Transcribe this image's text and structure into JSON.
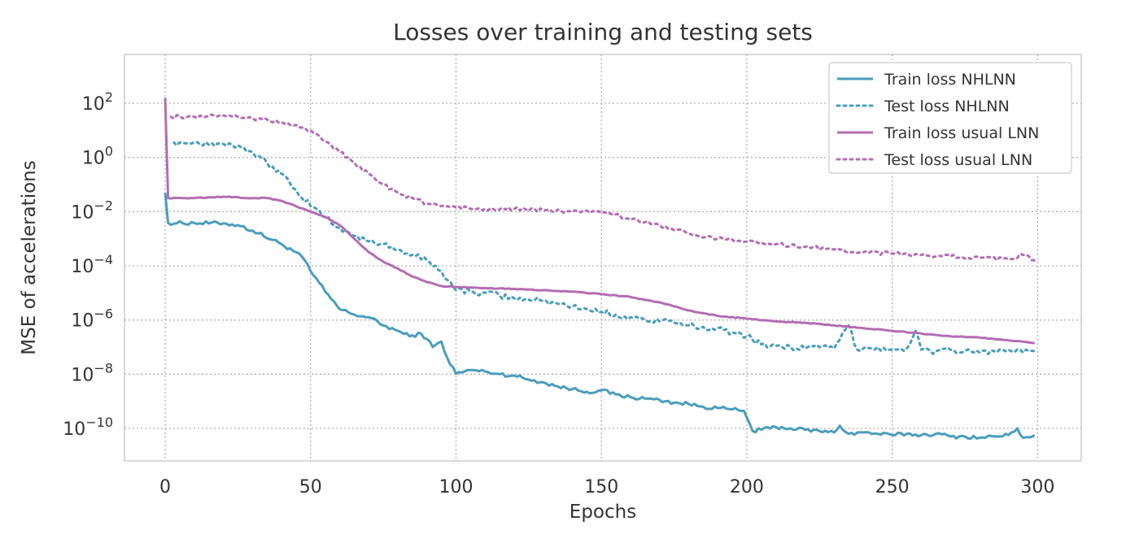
{
  "chart_data": {
    "type": "line",
    "title": "Losses over training and testing sets",
    "xlabel": "Epochs",
    "ylabel": "MSE of accelerations",
    "yscale": "log",
    "grid": true,
    "legend_position": "top-right",
    "xlim": [
      -14,
      315
    ],
    "ylim_exp": [
      -11.2,
      3.8
    ],
    "xticks": [
      0,
      50,
      100,
      150,
      200,
      250,
      300
    ],
    "yticks": [
      {
        "exp": 2,
        "base": "10",
        "power": "2"
      },
      {
        "exp": 0,
        "base": "10",
        "power": "0"
      },
      {
        "exp": -2,
        "base": "10",
        "power": "−2"
      },
      {
        "exp": -4,
        "base": "10",
        "power": "−4"
      },
      {
        "exp": -6,
        "base": "10",
        "power": "−6"
      },
      {
        "exp": -8,
        "base": "10",
        "power": "−8"
      },
      {
        "exp": -10,
        "base": "10",
        "power": "−10"
      }
    ],
    "series": [
      {
        "name": "Train loss NHLNN",
        "color": "#4a9dbd",
        "style": "solid",
        "points_log10": [
          [
            0,
            -1.3
          ],
          [
            1,
            -2.42
          ],
          [
            10,
            -2.42
          ],
          [
            20,
            -2.43
          ],
          [
            25,
            -2.5
          ],
          [
            30,
            -2.7
          ],
          [
            40,
            -3.2
          ],
          [
            45,
            -3.5
          ],
          [
            48,
            -3.8
          ],
          [
            50,
            -4.2
          ],
          [
            55,
            -4.95
          ],
          [
            60,
            -5.6
          ],
          [
            65,
            -5.8
          ],
          [
            70,
            -5.9
          ],
          [
            75,
            -6.2
          ],
          [
            80,
            -6.4
          ],
          [
            84,
            -6.6
          ],
          [
            88,
            -6.5
          ],
          [
            90,
            -6.7
          ],
          [
            92,
            -7.0
          ],
          [
            95,
            -6.8
          ],
          [
            97,
            -7.4
          ],
          [
            100,
            -7.98
          ],
          [
            105,
            -7.85
          ],
          [
            110,
            -7.9
          ],
          [
            115,
            -8.0
          ],
          [
            120,
            -8.05
          ],
          [
            125,
            -8.2
          ],
          [
            130,
            -8.3
          ],
          [
            135,
            -8.45
          ],
          [
            140,
            -8.55
          ],
          [
            145,
            -8.65
          ],
          [
            150,
            -8.6
          ],
          [
            155,
            -8.75
          ],
          [
            160,
            -8.85
          ],
          [
            165,
            -8.9
          ],
          [
            170,
            -8.95
          ],
          [
            175,
            -9.05
          ],
          [
            180,
            -9.1
          ],
          [
            185,
            -9.2
          ],
          [
            190,
            -9.25
          ],
          [
            195,
            -9.3
          ],
          [
            199,
            -9.35
          ],
          [
            200,
            -9.6
          ],
          [
            202,
            -10.1
          ],
          [
            205,
            -10.05
          ],
          [
            210,
            -9.95
          ],
          [
            215,
            -10.0
          ],
          [
            220,
            -10.05
          ],
          [
            225,
            -10.1
          ],
          [
            230,
            -10.15
          ],
          [
            232,
            -9.9
          ],
          [
            235,
            -10.2
          ],
          [
            240,
            -10.15
          ],
          [
            245,
            -10.2
          ],
          [
            250,
            -10.25
          ],
          [
            255,
            -10.2
          ],
          [
            260,
            -10.25
          ],
          [
            265,
            -10.2
          ],
          [
            270,
            -10.3
          ],
          [
            275,
            -10.3
          ],
          [
            280,
            -10.35
          ],
          [
            285,
            -10.3
          ],
          [
            290,
            -10.25
          ],
          [
            293,
            -10.0
          ],
          [
            295,
            -10.35
          ],
          [
            299,
            -10.25
          ]
        ]
      },
      {
        "name": "Test loss NHLNN",
        "color": "#4a9dbd",
        "style": "dotted",
        "points_log10": [
          [
            3,
            0.55
          ],
          [
            10,
            0.55
          ],
          [
            20,
            0.5
          ],
          [
            25,
            0.45
          ],
          [
            30,
            0.2
          ],
          [
            35,
            -0.2
          ],
          [
            40,
            -0.6
          ],
          [
            45,
            -1.2
          ],
          [
            50,
            -1.8
          ],
          [
            55,
            -2.2
          ],
          [
            60,
            -2.6
          ],
          [
            65,
            -2.9
          ],
          [
            70,
            -3.1
          ],
          [
            75,
            -3.2
          ],
          [
            80,
            -3.4
          ],
          [
            85,
            -3.6
          ],
          [
            90,
            -3.8
          ],
          [
            95,
            -4.2
          ],
          [
            100,
            -4.9
          ],
          [
            105,
            -4.95
          ],
          [
            110,
            -5.0
          ],
          [
            115,
            -5.1
          ],
          [
            120,
            -5.2
          ],
          [
            125,
            -5.25
          ],
          [
            130,
            -5.3
          ],
          [
            135,
            -5.4
          ],
          [
            140,
            -5.5
          ],
          [
            145,
            -5.6
          ],
          [
            150,
            -5.7
          ],
          [
            155,
            -5.8
          ],
          [
            160,
            -5.9
          ],
          [
            165,
            -6.0
          ],
          [
            170,
            -6.05
          ],
          [
            175,
            -6.1
          ],
          [
            180,
            -6.2
          ],
          [
            185,
            -6.25
          ],
          [
            190,
            -6.3
          ],
          [
            195,
            -6.45
          ],
          [
            200,
            -6.6
          ],
          [
            205,
            -6.9
          ],
          [
            210,
            -6.95
          ],
          [
            215,
            -7.0
          ],
          [
            220,
            -7.05
          ],
          [
            225,
            -7.0
          ],
          [
            230,
            -7.05
          ],
          [
            235,
            -6.2
          ],
          [
            238,
            -7.1
          ],
          [
            240,
            -7.05
          ],
          [
            245,
            -7.0
          ],
          [
            250,
            -7.1
          ],
          [
            255,
            -7.05
          ],
          [
            258,
            -6.4
          ],
          [
            260,
            -7.1
          ],
          [
            265,
            -7.15
          ],
          [
            270,
            -7.1
          ],
          [
            275,
            -7.15
          ],
          [
            280,
            -7.2
          ],
          [
            285,
            -7.15
          ],
          [
            290,
            -7.1
          ],
          [
            295,
            -7.2
          ],
          [
            299,
            -7.15
          ]
        ]
      },
      {
        "name": "Train loss usual LNN",
        "color": "#b36db3",
        "style": "solid",
        "points_log10": [
          [
            0,
            2.2
          ],
          [
            1,
            -1.5
          ],
          [
            10,
            -1.5
          ],
          [
            20,
            -1.45
          ],
          [
            30,
            -1.5
          ],
          [
            35,
            -1.5
          ],
          [
            40,
            -1.6
          ],
          [
            45,
            -1.8
          ],
          [
            50,
            -2.0
          ],
          [
            55,
            -2.2
          ],
          [
            60,
            -2.5
          ],
          [
            65,
            -3.0
          ],
          [
            70,
            -3.5
          ],
          [
            75,
            -3.85
          ],
          [
            80,
            -4.1
          ],
          [
            85,
            -4.4
          ],
          [
            90,
            -4.6
          ],
          [
            95,
            -4.75
          ],
          [
            100,
            -4.78
          ],
          [
            110,
            -4.82
          ],
          [
            120,
            -4.85
          ],
          [
            130,
            -4.9
          ],
          [
            140,
            -4.95
          ],
          [
            150,
            -5.05
          ],
          [
            160,
            -5.15
          ],
          [
            170,
            -5.35
          ],
          [
            175,
            -5.5
          ],
          [
            180,
            -5.65
          ],
          [
            185,
            -5.75
          ],
          [
            190,
            -5.85
          ],
          [
            200,
            -5.95
          ],
          [
            210,
            -6.05
          ],
          [
            220,
            -6.1
          ],
          [
            230,
            -6.2
          ],
          [
            240,
            -6.3
          ],
          [
            250,
            -6.4
          ],
          [
            260,
            -6.5
          ],
          [
            270,
            -6.6
          ],
          [
            280,
            -6.65
          ],
          [
            290,
            -6.75
          ],
          [
            299,
            -6.85
          ]
        ]
      },
      {
        "name": "Test loss usual LNN",
        "color": "#b36db3",
        "style": "dotted",
        "points_log10": [
          [
            2,
            1.5
          ],
          [
            10,
            1.5
          ],
          [
            15,
            1.55
          ],
          [
            20,
            1.55
          ],
          [
            25,
            1.5
          ],
          [
            30,
            1.45
          ],
          [
            35,
            1.4
          ],
          [
            40,
            1.3
          ],
          [
            45,
            1.2
          ],
          [
            50,
            1.0
          ],
          [
            55,
            0.6
          ],
          [
            60,
            0.2
          ],
          [
            65,
            -0.2
          ],
          [
            70,
            -0.6
          ],
          [
            75,
            -1.0
          ],
          [
            80,
            -1.3
          ],
          [
            85,
            -1.5
          ],
          [
            90,
            -1.7
          ],
          [
            95,
            -1.8
          ],
          [
            100,
            -1.85
          ],
          [
            110,
            -1.9
          ],
          [
            120,
            -1.9
          ],
          [
            130,
            -1.95
          ],
          [
            140,
            -2.0
          ],
          [
            150,
            -2.05
          ],
          [
            155,
            -2.1
          ],
          [
            160,
            -2.3
          ],
          [
            170,
            -2.5
          ],
          [
            180,
            -2.8
          ],
          [
            190,
            -3.0
          ],
          [
            200,
            -3.1
          ],
          [
            210,
            -3.2
          ],
          [
            220,
            -3.3
          ],
          [
            230,
            -3.4
          ],
          [
            240,
            -3.5
          ],
          [
            250,
            -3.55
          ],
          [
            260,
            -3.6
          ],
          [
            270,
            -3.65
          ],
          [
            280,
            -3.7
          ],
          [
            290,
            -3.75
          ],
          [
            295,
            -3.6
          ],
          [
            299,
            -3.8
          ]
        ]
      }
    ]
  }
}
